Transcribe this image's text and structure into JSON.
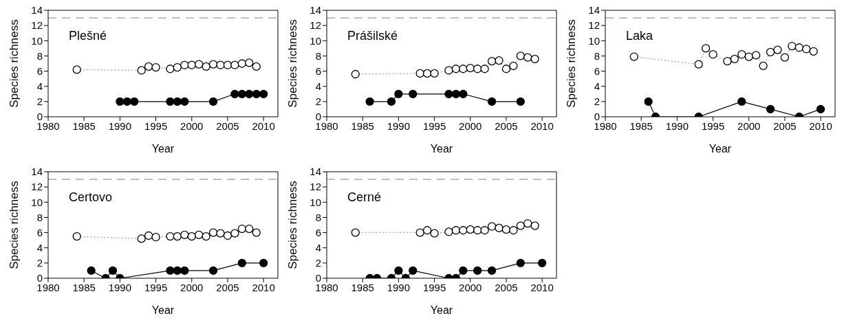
{
  "chart_data": [
    {
      "type": "line",
      "title": "Plešné",
      "xlabel": "Year",
      "ylabel": "Species richness",
      "xlim": [
        1980,
        2012
      ],
      "xticks": [
        1980,
        1985,
        1990,
        1995,
        2000,
        2005,
        2010
      ],
      "ylim": [
        0,
        14
      ],
      "yticks": [
        0,
        2,
        4,
        6,
        8,
        10,
        12,
        14
      ],
      "ref_lines": [
        {
          "axis": "y",
          "value": 13,
          "color": "#808080",
          "line_style": "dashed"
        }
      ],
      "series": [
        {
          "color": "#ffffff",
          "marker": "circle",
          "line_style": "dotted",
          "x": [
            1984,
            1993,
            1994,
            1995,
            1997,
            1998,
            1999,
            2000,
            2001,
            2002,
            2003,
            2004,
            2005,
            2006,
            2007,
            2008,
            2009
          ],
          "values": [
            6.2,
            6.1,
            6.6,
            6.5,
            6.3,
            6.5,
            6.8,
            6.8,
            6.9,
            6.6,
            6.9,
            6.8,
            6.8,
            6.8,
            7.0,
            7.1,
            6.6
          ]
        },
        {
          "color": "#000000",
          "marker": "circle",
          "line_style": "solid",
          "x": [
            1990,
            1991,
            1992,
            1997,
            1998,
            1999,
            2003,
            2006,
            2007,
            2008,
            2009,
            2010
          ],
          "values": [
            2,
            2,
            2,
            2,
            2,
            2,
            2,
            3,
            3,
            3,
            3,
            3
          ]
        }
      ]
    },
    {
      "type": "line",
      "title": "Prášilské",
      "xlabel": "Year",
      "ylabel": "Species richness",
      "xlim": [
        1980,
        2012
      ],
      "xticks": [
        1980,
        1985,
        1990,
        1995,
        2000,
        2005,
        2010
      ],
      "ylim": [
        0,
        14
      ],
      "yticks": [
        0,
        2,
        4,
        6,
        8,
        10,
        12,
        14
      ],
      "ref_lines": [
        {
          "axis": "y",
          "value": 13,
          "color": "#808080",
          "line_style": "dashed"
        }
      ],
      "series": [
        {
          "color": "#ffffff",
          "marker": "circle",
          "line_style": "dotted",
          "x": [
            1984,
            1993,
            1994,
            1995,
            1997,
            1998,
            1999,
            2000,
            2001,
            2002,
            2003,
            2004,
            2005,
            2006,
            2007,
            2008,
            2009
          ],
          "values": [
            5.6,
            5.7,
            5.7,
            5.7,
            6.1,
            6.3,
            6.3,
            6.4,
            6.3,
            6.3,
            7.3,
            7.4,
            6.3,
            6.7,
            8.0,
            7.8,
            7.6
          ]
        },
        {
          "color": "#000000",
          "marker": "circle",
          "line_style": "solid",
          "x": [
            1986,
            1989,
            1990,
            1992,
            1997,
            1998,
            1999,
            2003,
            2007
          ],
          "values": [
            2,
            2,
            3,
            3,
            3,
            3,
            3,
            2,
            2
          ]
        }
      ]
    },
    {
      "type": "line",
      "title": "Laka",
      "xlabel": "Year",
      "ylabel": "Species richness",
      "xlim": [
        1980,
        2012
      ],
      "xticks": [
        1980,
        1985,
        1990,
        1995,
        2000,
        2005,
        2010
      ],
      "ylim": [
        0,
        14
      ],
      "yticks": [
        0,
        2,
        4,
        6,
        8,
        10,
        12,
        14
      ],
      "ref_lines": [
        {
          "axis": "y",
          "value": 13,
          "color": "#808080",
          "line_style": "dashed"
        }
      ],
      "series": [
        {
          "color": "#ffffff",
          "marker": "circle",
          "line_style": "dotted",
          "x": [
            1984,
            1993,
            1994,
            1995,
            1997,
            1998,
            1999,
            2000,
            2001,
            2002,
            2003,
            2004,
            2005,
            2006,
            2007,
            2008,
            2009
          ],
          "values": [
            7.9,
            6.9,
            9.0,
            8.2,
            7.3,
            7.6,
            8.2,
            7.9,
            8.1,
            6.7,
            8.5,
            8.8,
            7.8,
            9.3,
            9.1,
            8.9,
            8.6
          ]
        },
        {
          "color": "#000000",
          "marker": "circle",
          "line_style": "solid",
          "x": [
            1986,
            1987,
            1993,
            1999,
            2003,
            2007,
            2010
          ],
          "values": [
            2,
            0,
            0,
            2,
            1,
            0,
            1
          ]
        }
      ]
    },
    {
      "type": "line",
      "title": "Certovo",
      "xlabel": "Year",
      "ylabel": "Species richness",
      "xlim": [
        1980,
        2012
      ],
      "xticks": [
        1980,
        1985,
        1990,
        1995,
        2000,
        2005,
        2010
      ],
      "ylim": [
        0,
        14
      ],
      "yticks": [
        0,
        2,
        4,
        6,
        8,
        10,
        12,
        14
      ],
      "ref_lines": [
        {
          "axis": "y",
          "value": 13,
          "color": "#808080",
          "line_style": "dashed"
        }
      ],
      "series": [
        {
          "color": "#ffffff",
          "marker": "circle",
          "line_style": "dotted",
          "x": [
            1984,
            1993,
            1994,
            1995,
            1997,
            1998,
            1999,
            2000,
            2001,
            2002,
            2003,
            2004,
            2005,
            2006,
            2007,
            2008,
            2009
          ],
          "values": [
            5.5,
            5.2,
            5.6,
            5.4,
            5.5,
            5.5,
            5.7,
            5.5,
            5.7,
            5.5,
            6.0,
            5.9,
            5.6,
            5.9,
            6.5,
            6.5,
            6.0
          ]
        },
        {
          "color": "#000000",
          "marker": "circle",
          "line_style": "solid",
          "x": [
            1986,
            1988,
            1989,
            1990,
            1997,
            1998,
            1999,
            2003,
            2007,
            2010
          ],
          "values": [
            1,
            0,
            1,
            0,
            1,
            1,
            1,
            1,
            2,
            2
          ]
        }
      ]
    },
    {
      "type": "line",
      "title": "Cerné",
      "xlabel": "Year",
      "ylabel": "Species richness",
      "xlim": [
        1980,
        2012
      ],
      "xticks": [
        1980,
        1985,
        1990,
        1995,
        2000,
        2005,
        2010
      ],
      "ylim": [
        0,
        14
      ],
      "yticks": [
        0,
        2,
        4,
        6,
        8,
        10,
        12,
        14
      ],
      "ref_lines": [
        {
          "axis": "y",
          "value": 13,
          "color": "#808080",
          "line_style": "dashed"
        }
      ],
      "series": [
        {
          "color": "#ffffff",
          "marker": "circle",
          "line_style": "dotted",
          "x": [
            1984,
            1993,
            1994,
            1995,
            1997,
            1998,
            1999,
            2000,
            2001,
            2002,
            2003,
            2004,
            2005,
            2006,
            2007,
            2008,
            2009
          ],
          "values": [
            6.0,
            6.0,
            6.3,
            5.9,
            6.1,
            6.3,
            6.3,
            6.4,
            6.3,
            6.3,
            6.8,
            6.6,
            6.4,
            6.3,
            6.9,
            7.2,
            6.9
          ]
        },
        {
          "color": "#000000",
          "marker": "circle",
          "line_style": "solid",
          "x": [
            1986,
            1987,
            1989,
            1990,
            1991,
            1992,
            1997,
            1998,
            1999,
            2001,
            2003,
            2007,
            2010
          ],
          "values": [
            0,
            0,
            0,
            1,
            0,
            1,
            0,
            0,
            1,
            1,
            1,
            2,
            2
          ]
        }
      ]
    }
  ]
}
